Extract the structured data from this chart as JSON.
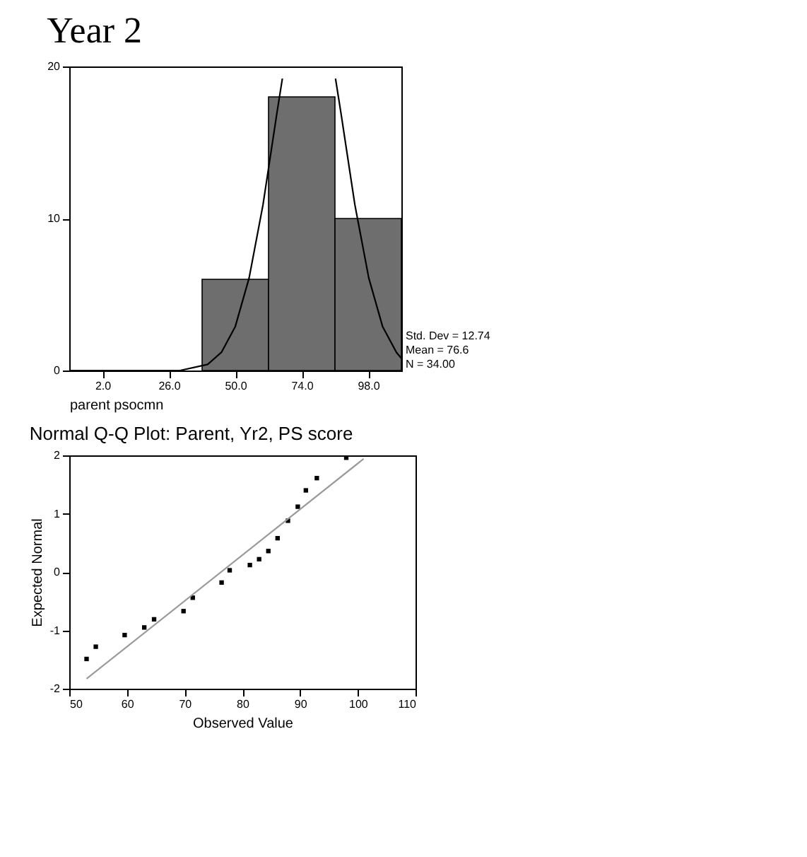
{
  "chart_data": [
    {
      "type": "histogram",
      "title": "Year 2",
      "xlabel": "parent psocmn",
      "bins": [
        38,
        62,
        86,
        110
      ],
      "values": [
        6,
        18,
        10
      ],
      "color": "#6e6e6e",
      "series": [
        {
          "type": "line",
          "color": "#000000",
          "x": [
            -10,
            20,
            30,
            40,
            45,
            50,
            55,
            60,
            65,
            67,
            76.6,
            86.2,
            88.2,
            93.2,
            98.2,
            103.2,
            108.2,
            110
          ],
          "line_style": "solid",
          "values": [
            0,
            0,
            0,
            0.4,
            1.2,
            2.9,
            6.1,
            10.9,
            16.9,
            19.2,
            null,
            19.2,
            16.9,
            10.9,
            6.1,
            2.9,
            1.2,
            0.8
          ]
        }
      ],
      "xlim": [
        -10,
        110
      ],
      "xticks": [
        {
          "value": 2,
          "label": "2.0"
        },
        {
          "value": 26,
          "label": "26.0"
        },
        {
          "value": 50,
          "label": "50.0"
        },
        {
          "value": 74,
          "label": "74.0"
        },
        {
          "value": 98,
          "label": "98.0"
        }
      ],
      "ylim": [
        0,
        20
      ],
      "yticks": [
        0,
        10,
        20
      ],
      "grid": false,
      "annotations": [
        "Std. Dev = 12.74",
        "Mean = 76.6",
        "N = 34.00"
      ]
    },
    {
      "type": "scatter",
      "title": "Normal Q-Q Plot: Parent, Yr2, PS score",
      "xlabel": "Observed Value",
      "ylabel": "Expected Normal",
      "grid": false,
      "series": [
        {
          "type": "scatter",
          "marker": "square",
          "color": "#000000",
          "x": [
            53.0,
            54.6,
            59.6,
            63.0,
            64.7,
            69.8,
            71.4,
            76.4,
            77.8,
            81.3,
            82.9,
            84.5,
            86.1,
            87.9,
            89.6,
            91.0,
            92.9,
            98.0
          ],
          "values": [
            -1.49,
            -1.28,
            -1.08,
            -0.95,
            -0.81,
            -0.67,
            -0.44,
            -0.18,
            0.03,
            0.12,
            0.22,
            0.36,
            0.58,
            0.88,
            1.12,
            1.4,
            1.61,
            1.96
          ]
        },
        {
          "type": "line",
          "color": "#9a9a9a",
          "line_style": "solid",
          "x": [
            53.0,
            101.0
          ],
          "values": [
            -1.83,
            1.94
          ]
        }
      ],
      "xlim": [
        50,
        110
      ],
      "xticks": [
        50,
        60,
        70,
        80,
        90,
        100,
        110
      ],
      "ylim": [
        -2,
        2
      ],
      "yticks": [
        -2,
        -1,
        0,
        1,
        2
      ]
    }
  ]
}
